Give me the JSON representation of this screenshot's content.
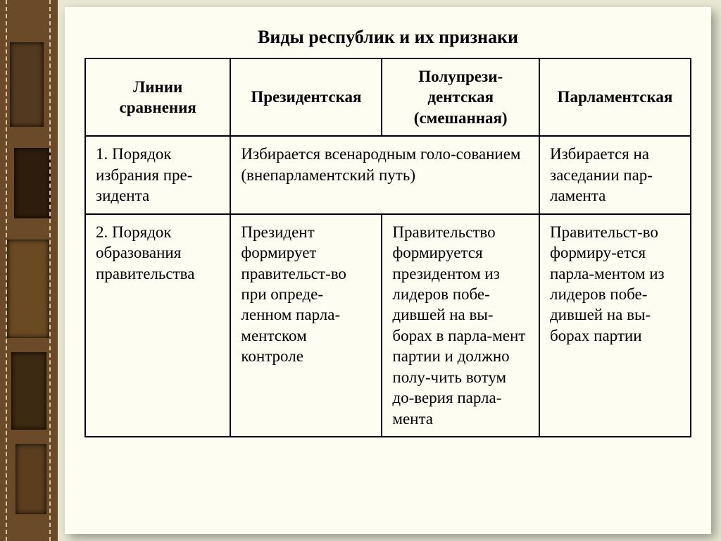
{
  "caption": "Виды республик и их признаки",
  "headers": {
    "col1": "Линии сравнения",
    "col2": "Президентская",
    "col3": "Полупрези-дентская (смешанная)",
    "col4": "Парламентская"
  },
  "rows": [
    {
      "label": "1. Порядок избрания пре-зидента",
      "merged_2_3": "Избирается всенародным голо-сованием (внепарламентский путь)",
      "col4": "Избирается на заседании пар-ламента"
    },
    {
      "label": "2. Порядок образования правительства",
      "col2": "Президент формирует правительст-во при опреде-ленном парла-ментском контроле",
      "col3": "Правительство формируется президентом из лидеров побе-дившей на вы-борах в парла-мент партии и должно полу-чить вотум до-верия парла-мента",
      "col4": "Правительст-во формиру-ется парла-ментом из лидеров побе-дившей на вы-борах партии"
    }
  ],
  "styling": {
    "page_bg": "#e8e8d4",
    "slide_bg": "#fdfdf2",
    "strip_bg": "#6b4a2a",
    "border_color": "#000000",
    "text_color": "#000000",
    "caption_fontsize": 26,
    "cell_fontsize": 23,
    "font_family": "Times New Roman"
  }
}
